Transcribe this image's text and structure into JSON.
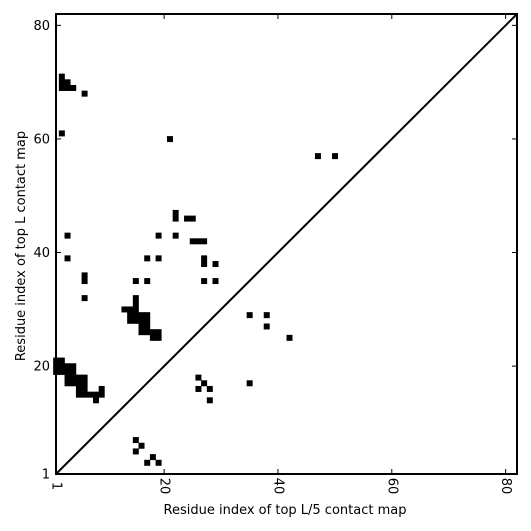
{
  "chart_data": {
    "type": "heatmap",
    "title": "",
    "xlabel": "Residue index of top L/5 contact map",
    "ylabel": "Residue index of top L contact map",
    "xlim": [
      1,
      82
    ],
    "ylim": [
      1,
      82
    ],
    "xticks": [
      1,
      20,
      40,
      60,
      80
    ],
    "yticks": [
      1,
      20,
      40,
      60,
      80
    ],
    "xtick_labels": [
      "1",
      "20",
      "40",
      "60",
      "80"
    ],
    "ytick_labels": [
      "1",
      "20",
      "40",
      "60",
      "80"
    ],
    "grid": false,
    "legend": "none",
    "diagonal": true,
    "colors": {
      "cell": "#000000",
      "background": "#ffffff"
    },
    "cells_upper_left": [
      [
        2,
        71
      ],
      [
        2,
        70
      ],
      [
        3,
        70
      ],
      [
        2,
        69
      ],
      [
        3,
        69
      ],
      [
        4,
        69
      ],
      [
        6,
        68
      ],
      [
        2,
        61
      ],
      [
        3,
        43
      ],
      [
        3,
        39
      ],
      [
        6,
        36
      ],
      [
        6,
        35
      ],
      [
        6,
        32
      ],
      [
        21,
        60
      ],
      [
        22,
        47
      ],
      [
        22,
        46
      ],
      [
        24,
        46
      ],
      [
        25,
        46
      ],
      [
        22,
        43
      ],
      [
        19,
        43
      ],
      [
        25,
        42
      ],
      [
        26,
        42
      ],
      [
        27,
        42
      ],
      [
        17,
        39
      ],
      [
        19,
        39
      ],
      [
        27,
        39
      ],
      [
        27,
        38
      ],
      [
        29,
        38
      ],
      [
        15,
        35
      ],
      [
        17,
        35
      ],
      [
        27,
        35
      ],
      [
        29,
        35
      ],
      [
        15,
        32
      ],
      [
        13,
        30
      ],
      [
        14,
        30
      ],
      [
        15,
        30
      ],
      [
        15,
        31
      ],
      [
        14,
        29
      ],
      [
        15,
        29
      ],
      [
        16,
        29
      ],
      [
        17,
        29
      ],
      [
        14,
        28
      ],
      [
        15,
        28
      ],
      [
        16,
        28
      ],
      [
        17,
        28
      ],
      [
        16,
        27
      ],
      [
        17,
        27
      ],
      [
        16,
        26
      ],
      [
        17,
        26
      ],
      [
        18,
        26
      ],
      [
        19,
        26
      ],
      [
        18,
        25
      ],
      [
        19,
        25
      ],
      [
        1,
        21
      ],
      [
        2,
        21
      ],
      [
        1,
        20
      ],
      [
        2,
        20
      ],
      [
        1,
        19
      ],
      [
        2,
        19
      ],
      [
        3,
        19
      ],
      [
        4,
        19
      ],
      [
        3,
        20
      ],
      [
        4,
        20
      ],
      [
        3,
        18
      ],
      [
        4,
        18
      ],
      [
        5,
        18
      ],
      [
        6,
        18
      ],
      [
        3,
        17
      ],
      [
        4,
        17
      ],
      [
        5,
        17
      ],
      [
        6,
        17
      ],
      [
        5,
        16
      ],
      [
        6,
        16
      ],
      [
        5,
        15
      ],
      [
        6,
        15
      ],
      [
        7,
        15
      ],
      [
        8,
        15
      ],
      [
        9,
        16
      ],
      [
        9,
        15
      ],
      [
        8,
        14
      ]
    ],
    "cells_lower_right": [
      [
        47,
        57
      ],
      [
        50,
        57
      ],
      [
        35,
        29
      ],
      [
        38,
        29
      ],
      [
        38,
        27
      ],
      [
        42,
        25
      ],
      [
        26,
        18
      ],
      [
        27,
        17
      ],
      [
        26,
        16
      ],
      [
        28,
        16
      ],
      [
        28,
        14
      ],
      [
        35,
        17
      ],
      [
        15,
        7
      ],
      [
        16,
        6
      ],
      [
        15,
        5
      ],
      [
        18,
        4
      ],
      [
        17,
        3
      ],
      [
        19,
        3
      ]
    ]
  }
}
